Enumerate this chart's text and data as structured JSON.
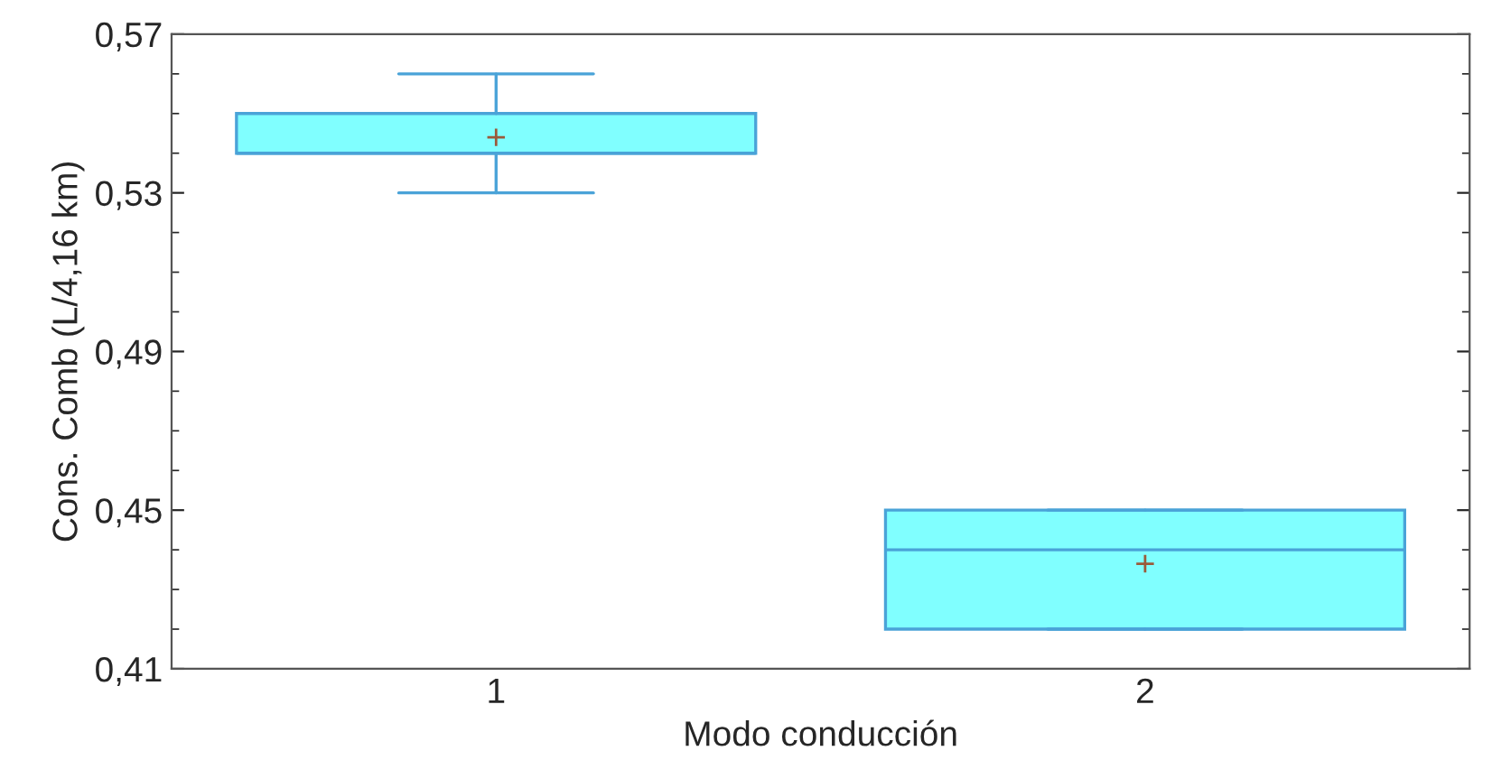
{
  "chart_data": {
    "type": "box",
    "xlabel": "Modo conducción",
    "ylabel": "Cons. Comb (L/4,16 km)",
    "categories": [
      "1",
      "2"
    ],
    "boxes": [
      {
        "low": 0.53,
        "q1": 0.54,
        "median": 0.54,
        "q3": 0.55,
        "high": 0.56,
        "mean": 0.544
      },
      {
        "low": 0.42,
        "q1": 0.42,
        "median": 0.44,
        "q3": 0.45,
        "high": 0.45,
        "mean": 0.4365
      }
    ],
    "color": "#80ffff",
    "ylim": [
      0.41,
      0.57
    ],
    "yticks": [
      {
        "value": 0.41,
        "label": "0,41"
      },
      {
        "value": 0.45,
        "label": "0,45"
      },
      {
        "value": 0.49,
        "label": "0,49"
      },
      {
        "value": 0.53,
        "label": "0,53"
      },
      {
        "value": 0.57,
        "label": "0,57"
      }
    ],
    "grid": false
  }
}
